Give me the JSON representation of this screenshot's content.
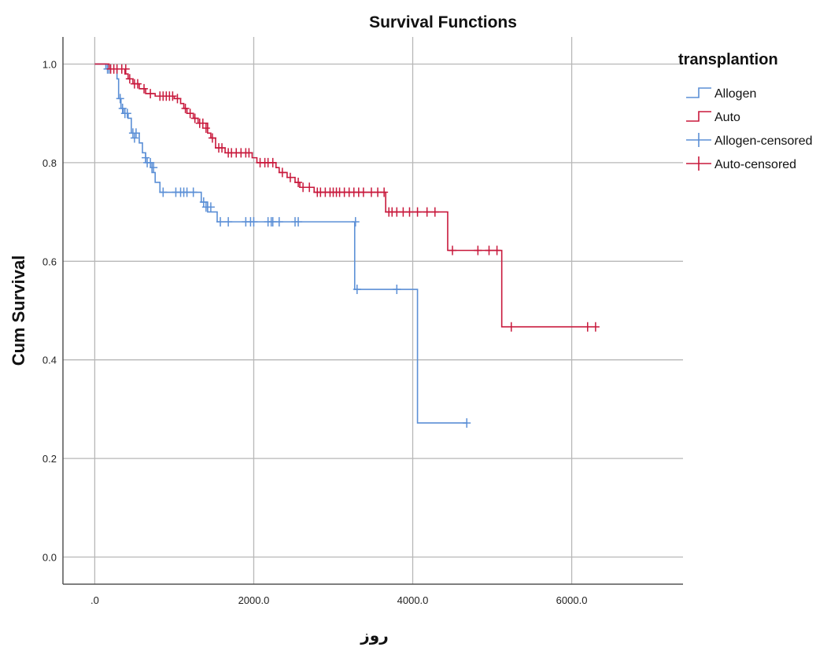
{
  "chart_data": {
    "type": "line",
    "subtype": "kaplan-meier step",
    "title": "Survival Functions",
    "xlabel": "روز",
    "ylabel": "Cum Survival",
    "xlim": [
      -400,
      7400
    ],
    "ylim": [
      -0.055,
      1.055
    ],
    "x_ticks": [
      0,
      2000,
      4000,
      6000
    ],
    "x_tick_labels": [
      ".0",
      "2000.0",
      "4000.0",
      "6000.0"
    ],
    "y_ticks": [
      0.0,
      0.2,
      0.4,
      0.6,
      0.8,
      1.0
    ],
    "y_tick_labels": [
      "0.0",
      "0.2",
      "0.4",
      "0.6",
      "0.8",
      "1.0"
    ],
    "grid": true,
    "legend": {
      "title": "transplantion",
      "placement": "right",
      "entries": [
        {
          "label": "Allogen",
          "kind": "step",
          "color": "#5b8fd6"
        },
        {
          "label": "Auto",
          "kind": "step",
          "color": "#c8193c"
        },
        {
          "label": "Allogen-censored",
          "kind": "censor",
          "color": "#5b8fd6"
        },
        {
          "label": "Auto-censored",
          "kind": "censor",
          "color": "#c8193c"
        }
      ]
    },
    "series": [
      {
        "name": "Allogen",
        "color": "#5b8fd6",
        "steps": [
          [
            0,
            1.0
          ],
          [
            140,
            0.99
          ],
          [
            280,
            0.97
          ],
          [
            300,
            0.93
          ],
          [
            330,
            0.91
          ],
          [
            360,
            0.9
          ],
          [
            420,
            0.89
          ],
          [
            460,
            0.86
          ],
          [
            560,
            0.84
          ],
          [
            600,
            0.82
          ],
          [
            640,
            0.8
          ],
          [
            720,
            0.78
          ],
          [
            760,
            0.76
          ],
          [
            820,
            0.74
          ],
          [
            1340,
            0.72
          ],
          [
            1420,
            0.7
          ],
          [
            1540,
            0.68
          ],
          [
            3270,
            0.543
          ],
          [
            4060,
            0.272
          ]
        ],
        "end_x": 4680,
        "censored": [
          [
            160,
            0.99
          ],
          [
            180,
            0.99
          ],
          [
            320,
            0.93
          ],
          [
            350,
            0.91
          ],
          [
            380,
            0.9
          ],
          [
            410,
            0.9
          ],
          [
            480,
            0.86
          ],
          [
            500,
            0.85
          ],
          [
            520,
            0.86
          ],
          [
            640,
            0.81
          ],
          [
            660,
            0.8
          ],
          [
            700,
            0.8
          ],
          [
            740,
            0.79
          ],
          [
            860,
            0.74
          ],
          [
            1020,
            0.74
          ],
          [
            1080,
            0.74
          ],
          [
            1120,
            0.74
          ],
          [
            1160,
            0.74
          ],
          [
            1240,
            0.74
          ],
          [
            1370,
            0.72
          ],
          [
            1400,
            0.71
          ],
          [
            1460,
            0.71
          ],
          [
            1580,
            0.68
          ],
          [
            1680,
            0.68
          ],
          [
            1900,
            0.68
          ],
          [
            1960,
            0.68
          ],
          [
            2000,
            0.68
          ],
          [
            2180,
            0.68
          ],
          [
            2220,
            0.68
          ],
          [
            2240,
            0.68
          ],
          [
            2320,
            0.68
          ],
          [
            2520,
            0.68
          ],
          [
            2560,
            0.68
          ],
          [
            3280,
            0.68
          ],
          [
            3300,
            0.543
          ],
          [
            3800,
            0.543
          ],
          [
            4680,
            0.272
          ]
        ]
      },
      {
        "name": "Auto",
        "color": "#c8193c",
        "steps": [
          [
            0,
            1.0
          ],
          [
            180,
            0.99
          ],
          [
            380,
            0.98
          ],
          [
            420,
            0.97
          ],
          [
            480,
            0.96
          ],
          [
            560,
            0.95
          ],
          [
            640,
            0.94
          ],
          [
            760,
            0.935
          ],
          [
            1000,
            0.93
          ],
          [
            1080,
            0.92
          ],
          [
            1120,
            0.91
          ],
          [
            1160,
            0.9
          ],
          [
            1240,
            0.89
          ],
          [
            1300,
            0.88
          ],
          [
            1420,
            0.86
          ],
          [
            1460,
            0.85
          ],
          [
            1520,
            0.83
          ],
          [
            1640,
            0.82
          ],
          [
            1980,
            0.81
          ],
          [
            2040,
            0.8
          ],
          [
            2280,
            0.79
          ],
          [
            2320,
            0.78
          ],
          [
            2420,
            0.77
          ],
          [
            2520,
            0.76
          ],
          [
            2580,
            0.75
          ],
          [
            2760,
            0.74
          ],
          [
            3660,
            0.7
          ],
          [
            4440,
            0.622
          ],
          [
            5120,
            0.467
          ]
        ],
        "end_x": 6300,
        "censored": [
          [
            200,
            0.99
          ],
          [
            240,
            0.99
          ],
          [
            280,
            0.99
          ],
          [
            340,
            0.99
          ],
          [
            390,
            0.99
          ],
          [
            440,
            0.97
          ],
          [
            500,
            0.96
          ],
          [
            540,
            0.96
          ],
          [
            620,
            0.95
          ],
          [
            700,
            0.94
          ],
          [
            820,
            0.935
          ],
          [
            860,
            0.935
          ],
          [
            900,
            0.935
          ],
          [
            940,
            0.935
          ],
          [
            980,
            0.935
          ],
          [
            1040,
            0.93
          ],
          [
            1140,
            0.91
          ],
          [
            1200,
            0.9
          ],
          [
            1260,
            0.89
          ],
          [
            1320,
            0.88
          ],
          [
            1360,
            0.88
          ],
          [
            1400,
            0.87
          ],
          [
            1480,
            0.85
          ],
          [
            1560,
            0.83
          ],
          [
            1600,
            0.83
          ],
          [
            1680,
            0.82
          ],
          [
            1720,
            0.82
          ],
          [
            1780,
            0.82
          ],
          [
            1840,
            0.82
          ],
          [
            1900,
            0.82
          ],
          [
            1940,
            0.82
          ],
          [
            2080,
            0.8
          ],
          [
            2140,
            0.8
          ],
          [
            2180,
            0.8
          ],
          [
            2240,
            0.8
          ],
          [
            2360,
            0.78
          ],
          [
            2460,
            0.77
          ],
          [
            2560,
            0.76
          ],
          [
            2620,
            0.75
          ],
          [
            2700,
            0.75
          ],
          [
            2800,
            0.74
          ],
          [
            2840,
            0.74
          ],
          [
            2900,
            0.74
          ],
          [
            2960,
            0.74
          ],
          [
            3000,
            0.74
          ],
          [
            3040,
            0.74
          ],
          [
            3080,
            0.74
          ],
          [
            3140,
            0.74
          ],
          [
            3200,
            0.74
          ],
          [
            3260,
            0.74
          ],
          [
            3320,
            0.74
          ],
          [
            3380,
            0.74
          ],
          [
            3480,
            0.74
          ],
          [
            3560,
            0.74
          ],
          [
            3640,
            0.74
          ],
          [
            3700,
            0.7
          ],
          [
            3740,
            0.7
          ],
          [
            3800,
            0.7
          ],
          [
            3880,
            0.7
          ],
          [
            3960,
            0.7
          ],
          [
            4060,
            0.7
          ],
          [
            4180,
            0.7
          ],
          [
            4280,
            0.7
          ],
          [
            4500,
            0.622
          ],
          [
            4820,
            0.622
          ],
          [
            4960,
            0.622
          ],
          [
            5060,
            0.622
          ],
          [
            5240,
            0.467
          ],
          [
            6200,
            0.467
          ],
          [
            6300,
            0.467
          ]
        ]
      }
    ]
  }
}
